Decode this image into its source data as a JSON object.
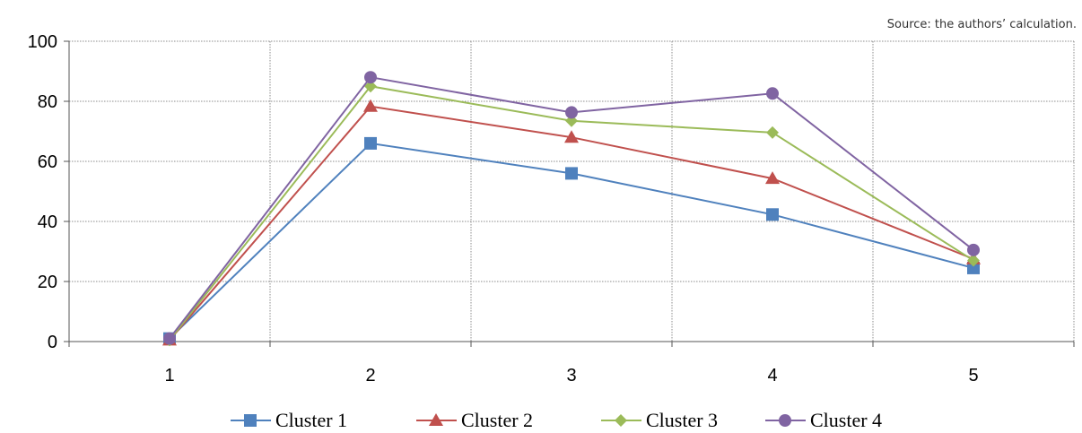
{
  "source_note": "Source: the authors’ calculation.",
  "chart_data": {
    "type": "line",
    "x": [
      1,
      2,
      3,
      4,
      5
    ],
    "x_tick_labels": [
      "1",
      "2",
      "3",
      "4",
      "5"
    ],
    "y_tick_labels": [
      "0",
      "20",
      "40",
      "60",
      "80",
      "100"
    ],
    "ylim": [
      0,
      100
    ],
    "yticks": [
      0,
      20,
      40,
      60,
      80,
      100
    ],
    "grid": true,
    "legend_position": "bottom",
    "series": [
      {
        "name": "Cluster 1",
        "color": "#4F81BD",
        "marker": "square",
        "values": [
          1,
          66,
          56,
          42.3,
          24.5
        ]
      },
      {
        "name": "Cluster 2",
        "color": "#C0504D",
        "marker": "triangle",
        "values": [
          0.5,
          78.3,
          68,
          54.3,
          27.5
        ]
      },
      {
        "name": "Cluster 3",
        "color": "#9BBB59",
        "marker": "diamond",
        "values": [
          0.5,
          85,
          73.5,
          69.6,
          27
        ]
      },
      {
        "name": "Cluster 4",
        "color": "#8064A2",
        "marker": "circle",
        "values": [
          1,
          88,
          76.3,
          82.6,
          30.5
        ]
      }
    ]
  }
}
